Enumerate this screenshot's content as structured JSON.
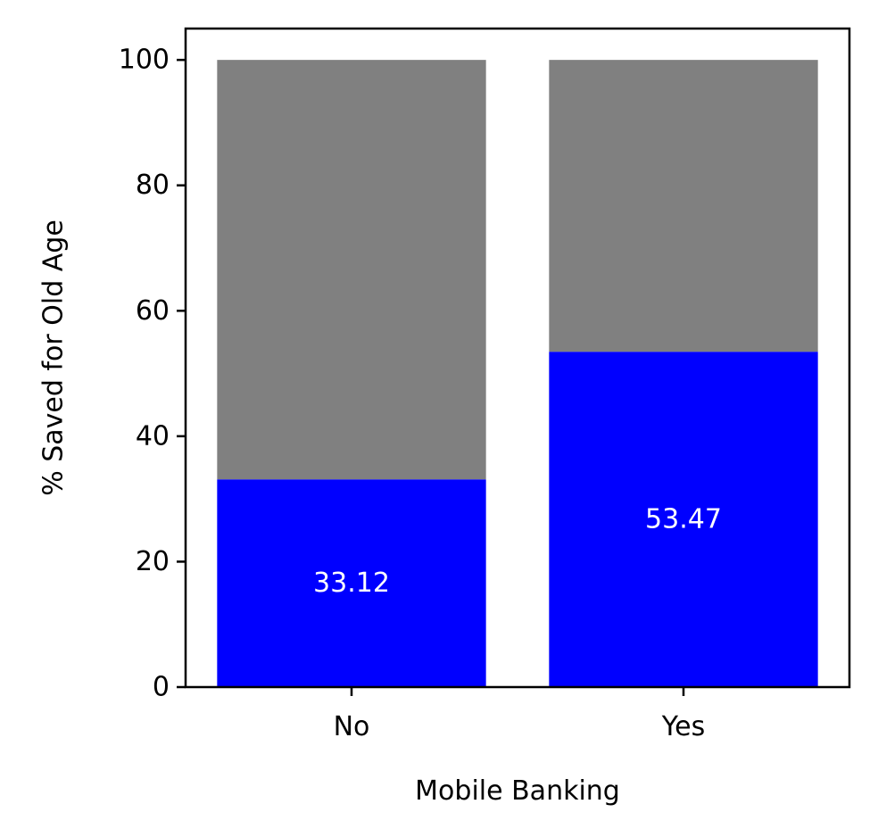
{
  "chart_data": {
    "type": "bar",
    "stacked": true,
    "categories": [
      "No",
      "Yes"
    ],
    "series": [
      {
        "values": [
          33.12,
          53.47
        ],
        "color": "#0000ff"
      },
      {
        "values": [
          66.88,
          46.53
        ],
        "color": "#808080"
      }
    ],
    "data_labels": [
      "33.12",
      "53.47"
    ],
    "xlabel": "Mobile Banking",
    "ylabel": "% Saved for Old Age",
    "ylim": [
      0,
      105
    ],
    "yticks": [
      0,
      20,
      40,
      60,
      80,
      100
    ],
    "grid": false,
    "legend": false
  }
}
